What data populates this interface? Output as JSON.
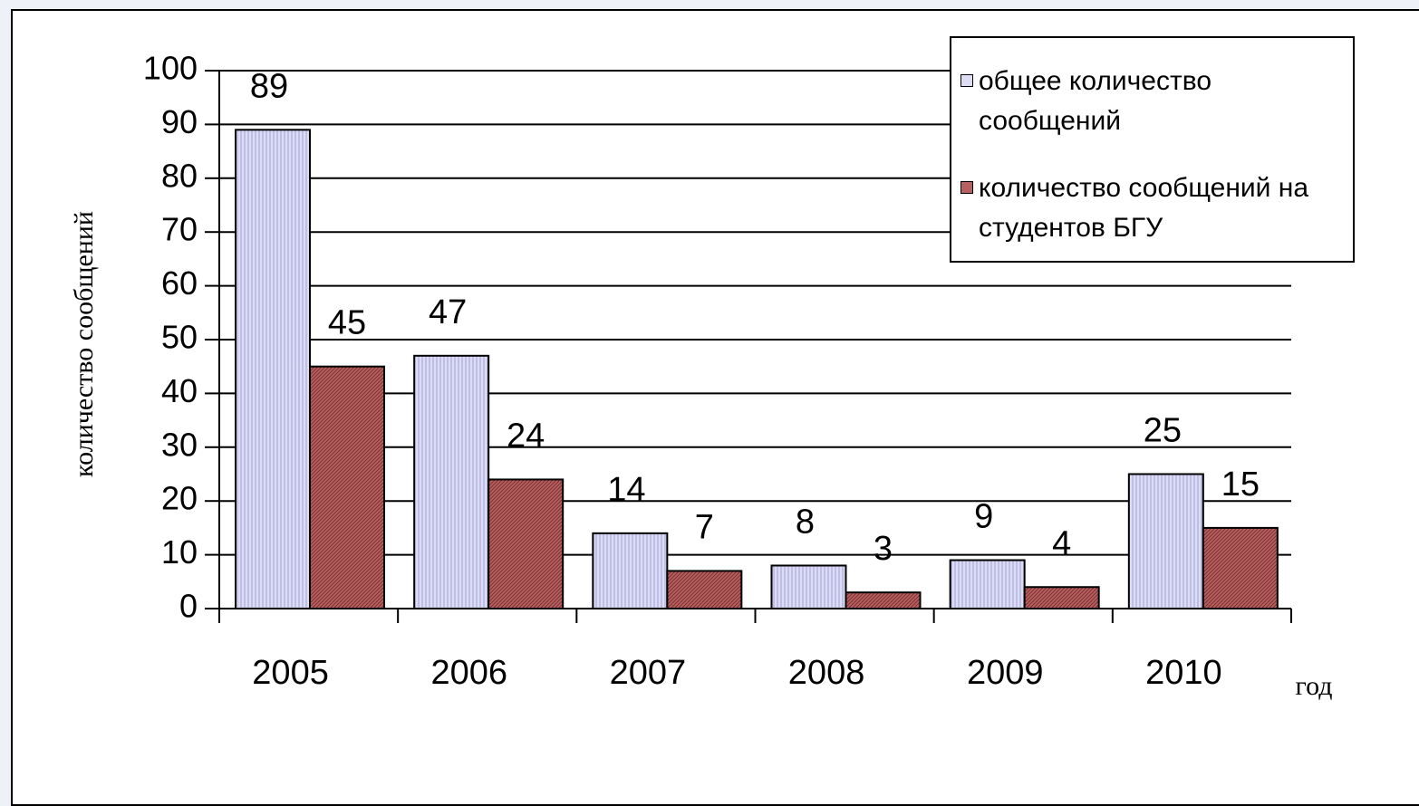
{
  "chart_data": {
    "type": "bar",
    "ylabel": "количество сообщений",
    "xlabel": "год",
    "categories": [
      "2005",
      "2006",
      "2007",
      "2008",
      "2009",
      "2010"
    ],
    "series": [
      {
        "name": "общее количество сообщений",
        "color": "#dcdcf4",
        "values": [
          89,
          47,
          14,
          8,
          9,
          25
        ]
      },
      {
        "name": "количество сообщений на студентов БГУ",
        "color": "#b86060",
        "values": [
          45,
          24,
          7,
          3,
          4,
          15
        ]
      }
    ],
    "ylim": [
      0,
      100
    ],
    "yticks": [
      0,
      10,
      20,
      30,
      40,
      50,
      60,
      70,
      80,
      90,
      100
    ],
    "grid": true,
    "legend": "upper right"
  }
}
